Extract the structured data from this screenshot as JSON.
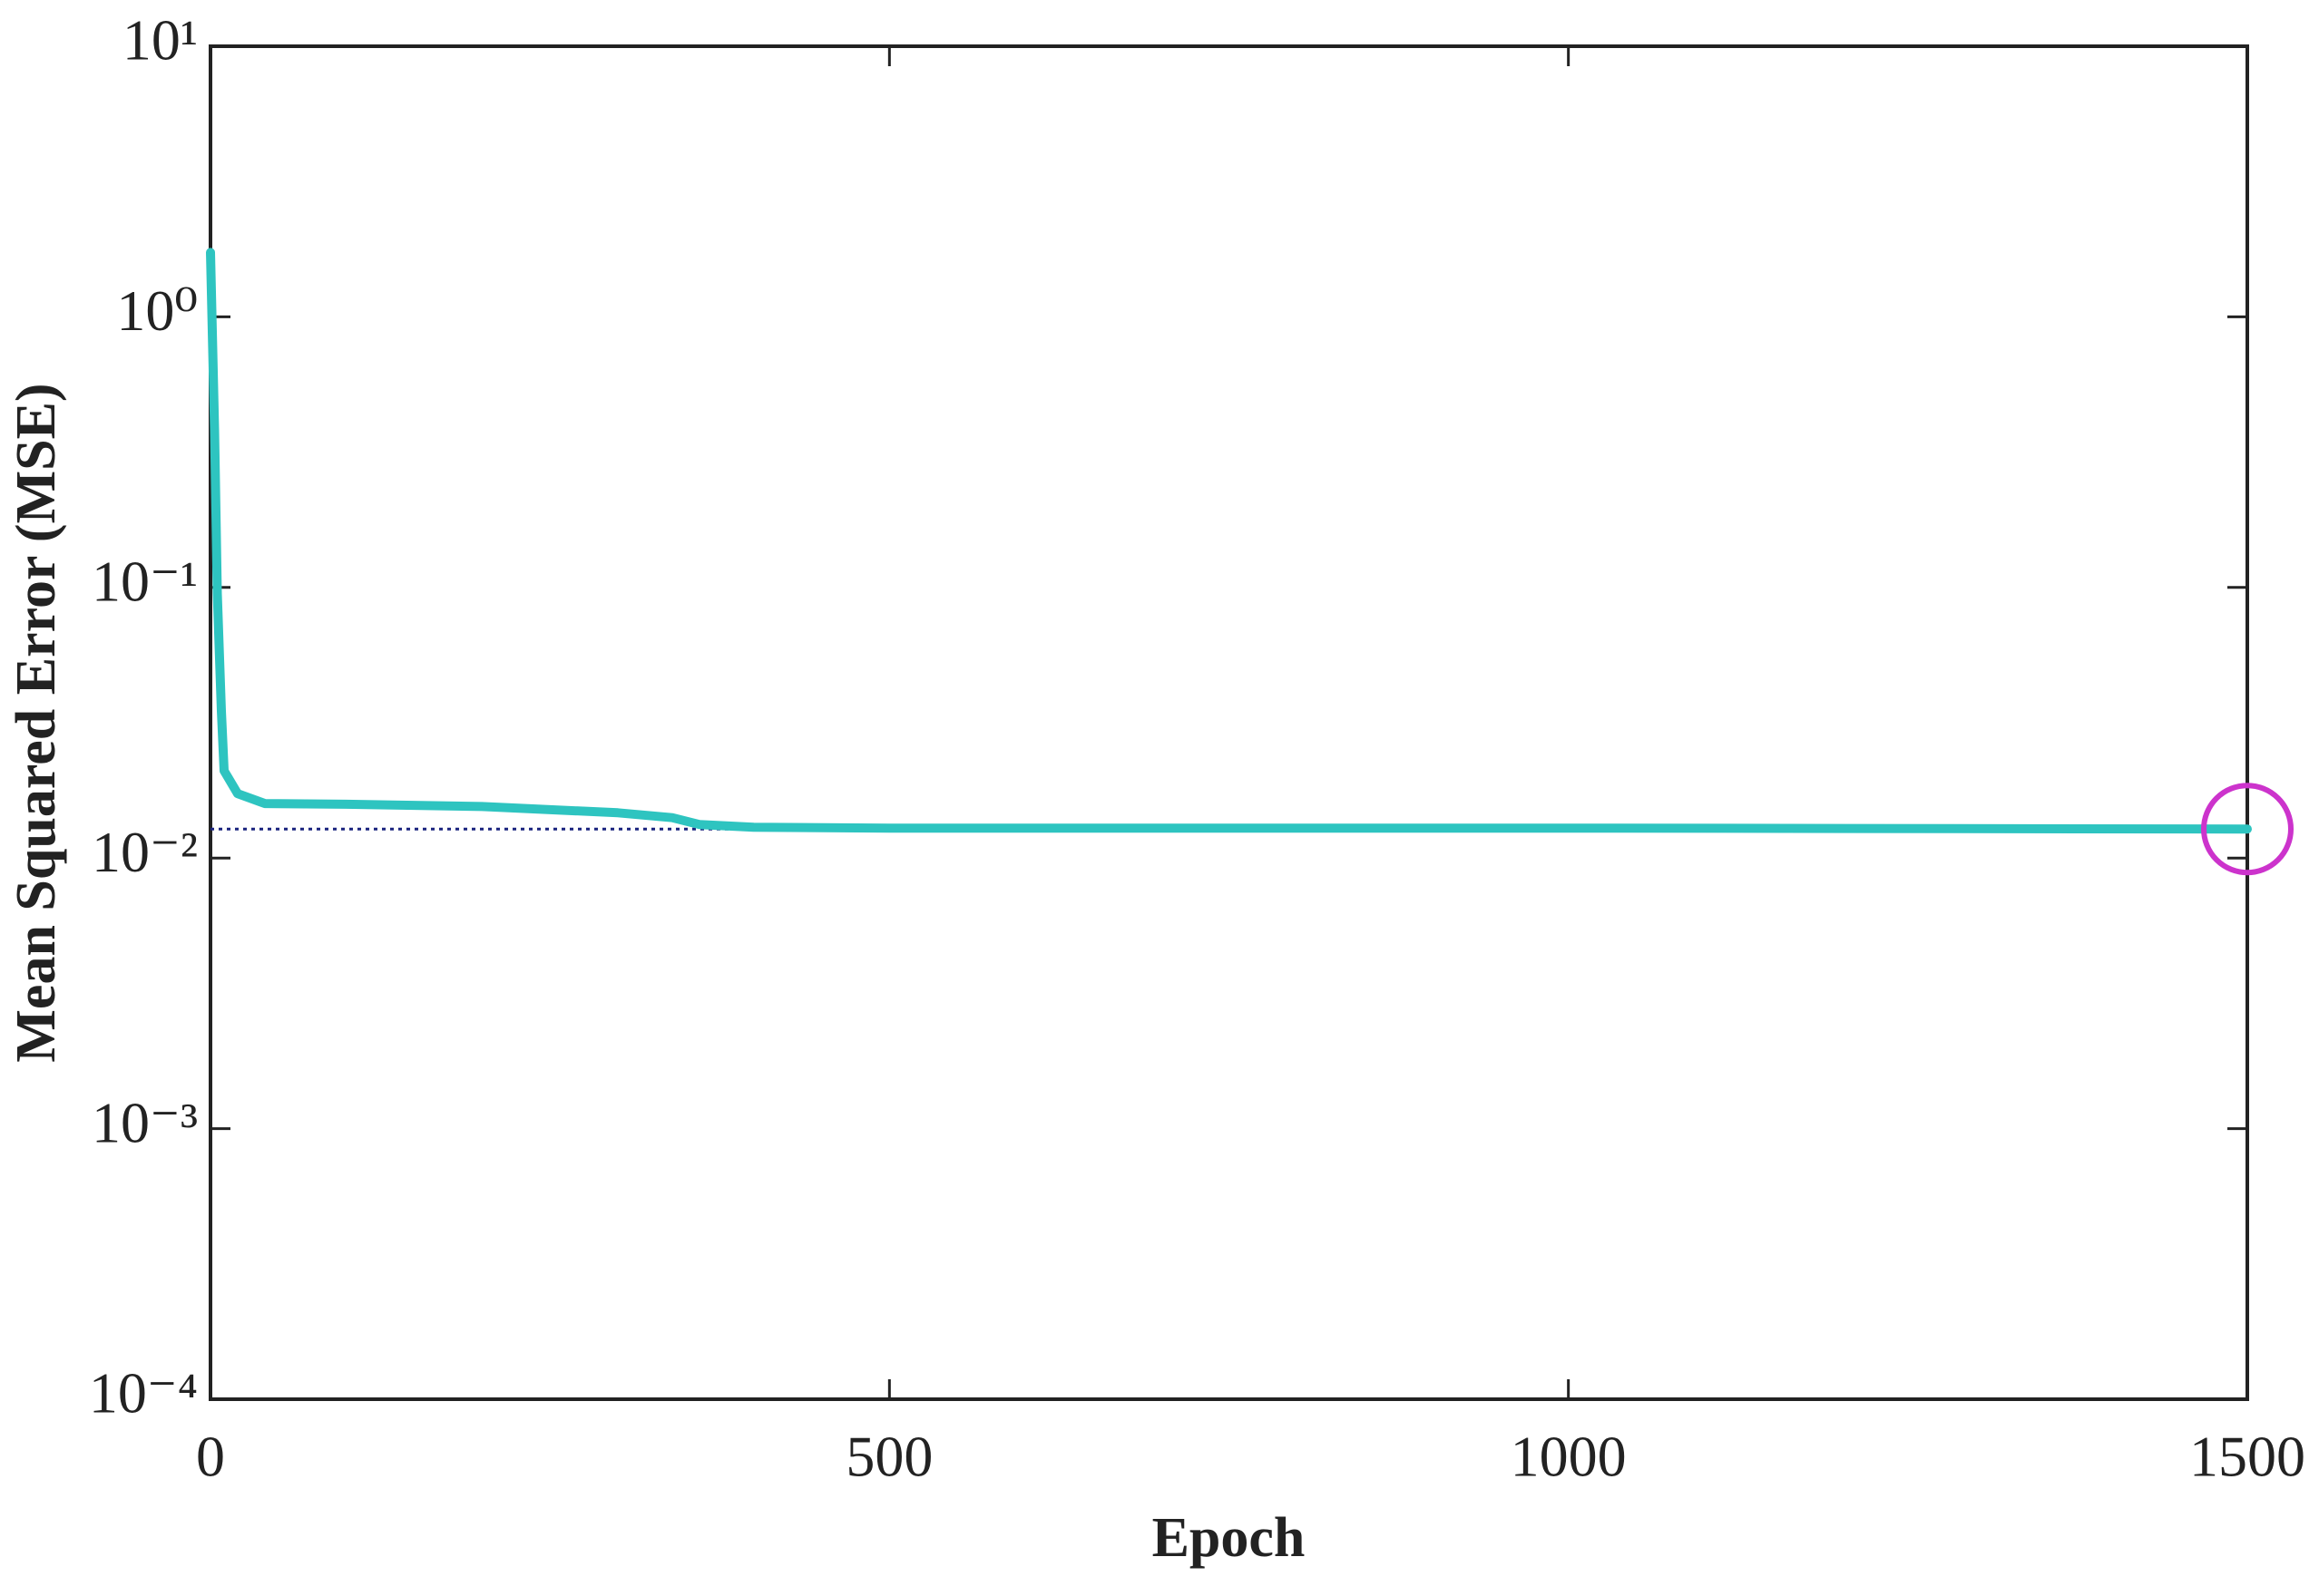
{
  "chart_data": {
    "type": "line",
    "xlabel": "Epoch",
    "ylabel": "Mean Squared Error  (MSE)",
    "x": [
      0,
      3,
      5,
      8,
      10,
      20,
      40,
      100,
      200,
      300,
      340,
      360,
      400,
      500,
      1000,
      1500
    ],
    "values": [
      1.73,
      0.38,
      0.095,
      0.035,
      0.021,
      0.0173,
      0.0159,
      0.0158,
      0.0155,
      0.0147,
      0.0141,
      0.0133,
      0.013,
      0.0129,
      0.0129,
      0.0128
    ],
    "color": "#2ec4c0",
    "goal": {
      "value": 0.0128,
      "color": "#1a237e"
    },
    "best": {
      "x": 1500,
      "y": 0.0128,
      "color": "#cc33cc"
    },
    "xlim": [
      0,
      1500
    ],
    "xticks": [
      0,
      500,
      1000,
      1500
    ],
    "ylim": [
      0.0001,
      10
    ],
    "yscale": "log",
    "yticks": [
      {
        "value": 0.0001,
        "label": "10⁻⁴"
      },
      {
        "value": 0.001,
        "label": "10⁻³"
      },
      {
        "value": 0.01,
        "label": "10⁻²"
      },
      {
        "value": 0.1,
        "label": "10⁻¹"
      },
      {
        "value": 1,
        "label": "10⁰"
      },
      {
        "value": 10,
        "label": "10¹"
      }
    ]
  }
}
